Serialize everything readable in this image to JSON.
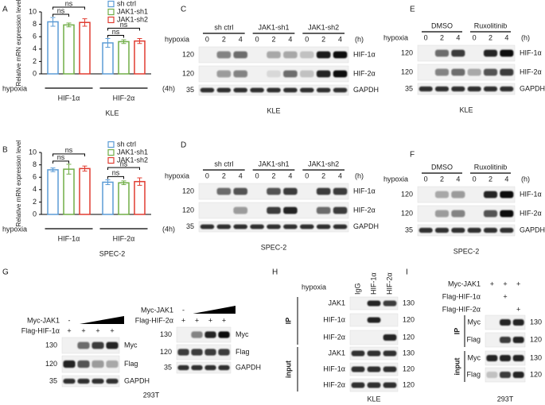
{
  "chart_data": [
    {
      "type": "bar",
      "panel": "A",
      "y_label": "Relative mRN expression level",
      "categories": [
        "HIF-1α",
        "HIF-2α"
      ],
      "series": [
        {
          "name": "sh ctrl",
          "color": "#5b9bd5",
          "values": [
            8.4,
            5.0
          ],
          "errors": [
            0.7,
            0.7
          ]
        },
        {
          "name": "JAK1-sh1",
          "color": "#70ad47",
          "values": [
            7.9,
            5.2
          ],
          "errors": [
            0.3,
            0.3
          ]
        },
        {
          "name": "JAK1-sh2",
          "color": "#e03c31",
          "values": [
            8.3,
            5.3
          ],
          "errors": [
            0.6,
            0.4
          ]
        }
      ],
      "ylim": [
        0,
        10
      ],
      "yticks": [
        0,
        2,
        4,
        6,
        8,
        10
      ],
      "x_label": "hypoxia",
      "x_unit": "(4h)",
      "caption": "KLE",
      "annotations": [
        "ns",
        "ns",
        "ns",
        "ns"
      ]
    },
    {
      "type": "bar",
      "panel": "B",
      "y_label": "Relative mRN expression level",
      "categories": [
        "HIF-1α",
        "HIF-2α"
      ],
      "series": [
        {
          "name": "sh ctrl",
          "color": "#5b9bd5",
          "values": [
            7.2,
            5.2
          ],
          "errors": [
            0.3,
            0.4
          ]
        },
        {
          "name": "JAK1-sh1",
          "color": "#70ad47",
          "values": [
            7.3,
            5.1
          ],
          "errors": [
            0.8,
            0.3
          ]
        },
        {
          "name": "JAK1-sh2",
          "color": "#e03c31",
          "values": [
            7.4,
            5.3
          ],
          "errors": [
            0.4,
            0.6
          ]
        }
      ],
      "ylim": [
        0,
        10
      ],
      "yticks": [
        0,
        2,
        4,
        6,
        8,
        10
      ],
      "x_label": "hypoxia",
      "x_unit": "(4h)",
      "caption": "SPEC-2",
      "annotations": [
        "ns",
        "ns",
        "ns",
        "ns"
      ]
    }
  ],
  "blots": [
    {
      "panel": "C",
      "treatment": "hypoxia",
      "groups": [
        "sh ctrl",
        "JAK1-sh1",
        "JAK1-sh2"
      ],
      "lanes": [
        "0",
        "2",
        "4",
        "0",
        "2",
        "4",
        "0",
        "2",
        "4"
      ],
      "unit": "(h)",
      "rows": [
        {
          "mw": "120",
          "protein": "HIF-1α"
        },
        {
          "mw": "120",
          "protein": "HIF-2α"
        },
        {
          "mw": "35",
          "protein": "GAPDH"
        }
      ],
      "caption": "KLE"
    },
    {
      "panel": "D",
      "treatment": "hypoxia",
      "groups": [
        "sh ctrl",
        "JAK1-sh1",
        "JAK1-sh2"
      ],
      "lanes": [
        "0",
        "2",
        "4",
        "0",
        "2",
        "4",
        "0",
        "2",
        "4"
      ],
      "unit": "(h)",
      "rows": [
        {
          "mw": "120",
          "protein": "HIF-1α"
        },
        {
          "mw": "120",
          "protein": "HIF-2α"
        },
        {
          "mw": "35",
          "protein": "GAPDH"
        }
      ],
      "caption": "SPEC-2"
    },
    {
      "panel": "E",
      "treatment": "hypoxia",
      "groups": [
        "DMSO",
        "Ruxolitinib"
      ],
      "lanes": [
        "0",
        "2",
        "4",
        "0",
        "2",
        "4"
      ],
      "unit": "(h)",
      "rows": [
        {
          "mw": "120",
          "protein": "HIF-1α"
        },
        {
          "mw": "120",
          "protein": "HIF-2α"
        },
        {
          "mw": "35",
          "protein": "GAPDH"
        }
      ],
      "caption": "KLE"
    },
    {
      "panel": "F",
      "treatment": "hypoxia",
      "groups": [
        "DMSO",
        "Ruxolitinib"
      ],
      "lanes": [
        "0",
        "2",
        "4",
        "0",
        "2",
        "4"
      ],
      "unit": "(h)",
      "rows": [
        {
          "mw": "120",
          "protein": "HIF-1α"
        },
        {
          "mw": "120",
          "protein": "HIF-2α"
        },
        {
          "mw": "35",
          "protein": "GAPDH"
        }
      ],
      "caption": "SPEC-2"
    }
  ],
  "panel_g": {
    "panel": "G",
    "caption": "293T",
    "blots": [
      {
        "conditions": [
          {
            "name": "Myc-JAK1",
            "marks": [
              "-"
            ]
          },
          {
            "name": "Flag-HIF-1α",
            "marks": [
              "+",
              "+",
              "+",
              "+"
            ]
          }
        ],
        "rows": [
          {
            "mw": "130",
            "protein": "Myc"
          },
          {
            "mw": "120",
            "protein": "Flag"
          },
          {
            "mw": "35",
            "protein": "GAPDH"
          }
        ]
      },
      {
        "conditions": [
          {
            "name": "Myc-JAK1",
            "marks": [
              "-"
            ]
          },
          {
            "name": "Flag-HIF-2α",
            "marks": [
              "+",
              "+",
              "+",
              "+"
            ]
          }
        ],
        "rows": [
          {
            "mw": "130",
            "protein": "Myc"
          },
          {
            "mw": "120",
            "protein": "Flag"
          },
          {
            "mw": "35",
            "protein": "GAPDH"
          }
        ]
      }
    ]
  },
  "panel_h": {
    "panel": "H",
    "treatment": "hypoxia",
    "lanes": [
      "IgG",
      "HIF-1α",
      "HIF-2α"
    ],
    "sections": [
      {
        "name": "IP",
        "rows": [
          {
            "protein": "JAK1",
            "mw": "130"
          },
          {
            "protein": "HIF-1α",
            "mw": "120"
          },
          {
            "protein": "HIF-2α",
            "mw": "120"
          }
        ]
      },
      {
        "name": "input",
        "rows": [
          {
            "protein": "JAK1",
            "mw": "130"
          },
          {
            "protein": "HIF-1α",
            "mw": "120"
          },
          {
            "protein": "HIF-2α",
            "mw": "120"
          }
        ]
      }
    ],
    "caption": "KLE"
  },
  "panel_i": {
    "panel": "I",
    "conditions": [
      {
        "name": "Myc-JAK1",
        "marks": [
          "+",
          "+",
          "+"
        ]
      },
      {
        "name": "Flag-HIF-1α",
        "marks": [
          null,
          "+",
          null
        ]
      },
      {
        "name": "Flag-HIF-2α",
        "marks": [
          null,
          null,
          "+"
        ]
      }
    ],
    "sections": [
      {
        "name": "IP",
        "rows": [
          {
            "protein": "Myc",
            "mw": "130"
          },
          {
            "protein": "Flag",
            "mw": "120"
          }
        ]
      },
      {
        "name": "input",
        "rows": [
          {
            "protein": "Myc",
            "mw": "130"
          },
          {
            "protein": "Flag",
            "mw": "120"
          }
        ]
      }
    ],
    "caption": "293T"
  }
}
